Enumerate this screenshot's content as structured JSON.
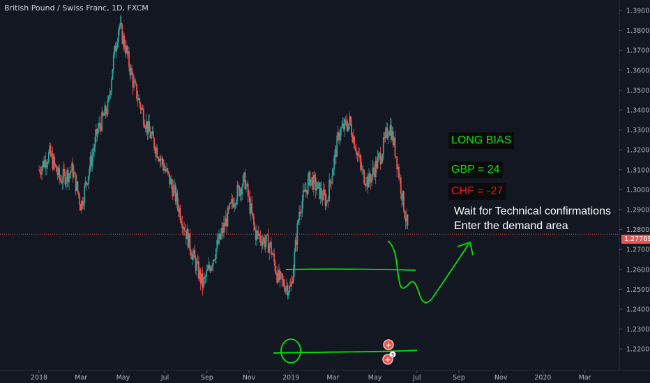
{
  "chart_data": {
    "type": "candlestick",
    "title": "British Pound / Swiss Franc, 1D, FXCM",
    "last_price": "1.27769",
    "ylim": [
      1.215,
      1.392
    ],
    "y_ticks": [
      "1.39000",
      "1.38000",
      "1.37000",
      "1.36000",
      "1.35000",
      "1.34000",
      "1.33000",
      "1.32000",
      "1.31000",
      "1.30000",
      "1.29000",
      "1.28000",
      "1.27000",
      "1.26000",
      "1.25000",
      "1.24000",
      "1.23000",
      "1.22000"
    ],
    "x_ticks": [
      "2018",
      "Mar",
      "May",
      "Jul",
      "Sep",
      "Nov",
      "2019",
      "Mar",
      "May",
      "Jul",
      "Sep",
      "Nov",
      "2020",
      "Mar"
    ],
    "x_tick_months": [
      0,
      2,
      4,
      6,
      8,
      10,
      12,
      14,
      16,
      18,
      20,
      22,
      24,
      26
    ],
    "price_path": [
      [
        0,
        1.31
      ],
      [
        0.5,
        1.318
      ],
      [
        1.0,
        1.305
      ],
      [
        1.6,
        1.31
      ],
      [
        2.0,
        1.292
      ],
      [
        2.8,
        1.33
      ],
      [
        3.3,
        1.342
      ],
      [
        3.5,
        1.362
      ],
      [
        3.8,
        1.383
      ],
      [
        4.1,
        1.372
      ],
      [
        4.5,
        1.353
      ],
      [
        5.2,
        1.33
      ],
      [
        5.7,
        1.318
      ],
      [
        6.4,
        1.3
      ],
      [
        7.3,
        1.268
      ],
      [
        7.8,
        1.252
      ],
      [
        8.6,
        1.275
      ],
      [
        9.3,
        1.296
      ],
      [
        9.8,
        1.305
      ],
      [
        10.3,
        1.278
      ],
      [
        11.0,
        1.272
      ],
      [
        11.4,
        1.255
      ],
      [
        12.0,
        1.25
      ],
      [
        12.4,
        1.29
      ],
      [
        12.9,
        1.306
      ],
      [
        13.3,
        1.3
      ],
      [
        13.7,
        1.294
      ],
      [
        14.3,
        1.329
      ],
      [
        14.8,
        1.334
      ],
      [
        15.4,
        1.308
      ],
      [
        15.7,
        1.304
      ],
      [
        16.3,
        1.318
      ],
      [
        16.7,
        1.333
      ],
      [
        17.0,
        1.318
      ],
      [
        17.4,
        1.29
      ],
      [
        17.6,
        1.27769
      ]
    ],
    "annotations": {
      "bias": "LONG BIAS",
      "gbp": "GBP = 24",
      "chf": "CHF = -27",
      "note_line1": "Wait for Technical confirmations",
      "note_line2": "Enter the demand area"
    },
    "event_badge_count": "3",
    "colors": {
      "background": "#131722",
      "up": "#26a69a",
      "down": "#ef5350",
      "drawing": "#00e600",
      "bias_text": "#00e600",
      "chf_text": "#e01b1b",
      "last_price_line": "#ef5350",
      "axis_text": "#b2b5be"
    }
  }
}
